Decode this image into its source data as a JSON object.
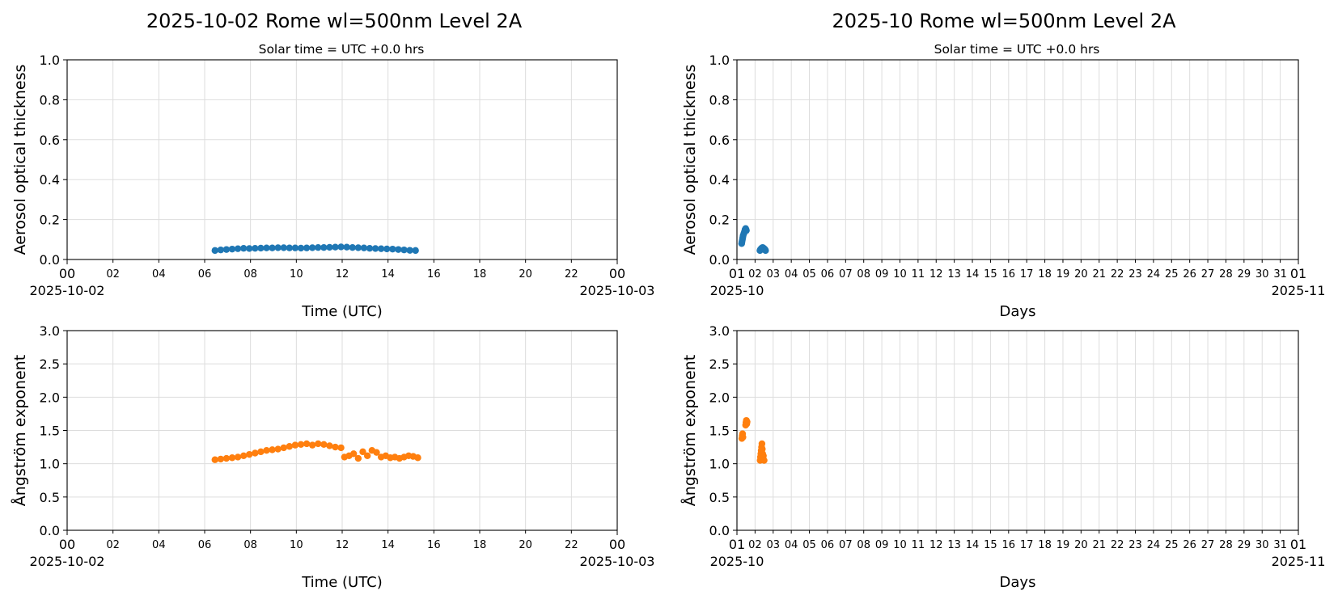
{
  "figure": {
    "left_title": "2025-10-02  Rome  wl=500nm  Level 2A",
    "right_title": "2025-10  Rome  wl=500nm  Level 2A",
    "subtitle": "Solar time = UTC +0.0 hrs"
  },
  "chart_data": [
    {
      "id": "daily-aot",
      "type": "scatter",
      "ylabel": "Aerosol optical thickness",
      "xlabel": "Time (UTC)",
      "ylim": [
        0,
        1.0
      ],
      "yticks": [
        "0.0",
        "0.2",
        "0.4",
        "0.6",
        "0.8",
        "1.0"
      ],
      "xlim": [
        0,
        24
      ],
      "xticks_major": [
        "00",
        "00"
      ],
      "xticks_minor": [
        "02",
        "04",
        "06",
        "08",
        "10",
        "12",
        "14",
        "16",
        "18",
        "20",
        "22"
      ],
      "x_sublabels": [
        "2025-10-02",
        "2025-10-03"
      ],
      "grid": true,
      "color": "#1f77b4",
      "x": [
        6.45,
        6.7,
        6.95,
        7.2,
        7.45,
        7.7,
        7.95,
        8.2,
        8.45,
        8.7,
        8.95,
        9.2,
        9.45,
        9.7,
        9.95,
        10.2,
        10.45,
        10.7,
        10.95,
        11.2,
        11.45,
        11.7,
        11.95,
        12.2,
        12.45,
        12.7,
        12.95,
        13.2,
        13.45,
        13.7,
        13.95,
        14.2,
        14.45,
        14.7,
        14.95,
        15.2
      ],
      "y": [
        0.045,
        0.048,
        0.05,
        0.052,
        0.054,
        0.056,
        0.055,
        0.056,
        0.057,
        0.058,
        0.058,
        0.059,
        0.059,
        0.058,
        0.058,
        0.057,
        0.058,
        0.059,
        0.06,
        0.06,
        0.061,
        0.062,
        0.063,
        0.062,
        0.06,
        0.059,
        0.058,
        0.056,
        0.055,
        0.054,
        0.053,
        0.052,
        0.05,
        0.048,
        0.046,
        0.045
      ]
    },
    {
      "id": "monthly-aot",
      "type": "scatter",
      "ylabel": "Aerosol optical thickness",
      "xlabel": "Days",
      "ylim": [
        0,
        1.0
      ],
      "yticks": [
        "0.0",
        "0.2",
        "0.4",
        "0.6",
        "0.8",
        "1.0"
      ],
      "xlim": [
        1,
        32
      ],
      "xticks_major": [
        "01",
        "01"
      ],
      "xticks_minor": [
        "02",
        "03",
        "04",
        "05",
        "06",
        "07",
        "08",
        "09",
        "10",
        "11",
        "12",
        "13",
        "14",
        "15",
        "16",
        "17",
        "18",
        "19",
        "20",
        "21",
        "22",
        "23",
        "24",
        "25",
        "26",
        "27",
        "28",
        "29",
        "30",
        "31"
      ],
      "x_sublabels": [
        "2025-10",
        "2025-11"
      ],
      "grid": true,
      "color": "#1f77b4",
      "x": [
        1.26,
        1.28,
        1.3,
        1.32,
        1.34,
        1.38,
        1.42,
        1.45,
        1.48,
        1.5,
        1.52,
        2.27,
        2.3,
        2.34,
        2.38,
        2.42,
        2.45,
        2.5,
        2.55,
        2.58
      ],
      "y": [
        0.08,
        0.09,
        0.1,
        0.11,
        0.12,
        0.13,
        0.14,
        0.15,
        0.155,
        0.15,
        0.145,
        0.045,
        0.05,
        0.055,
        0.058,
        0.06,
        0.058,
        0.055,
        0.05,
        0.045
      ]
    },
    {
      "id": "daily-angstrom",
      "type": "scatter",
      "ylabel": "Ångström exponent",
      "xlabel": "Time (UTC)",
      "ylim": [
        0,
        3.0
      ],
      "yticks": [
        "0.0",
        "0.5",
        "1.0",
        "1.5",
        "2.0",
        "2.5",
        "3.0"
      ],
      "xlim": [
        0,
        24
      ],
      "xticks_major": [
        "00",
        "00"
      ],
      "xticks_minor": [
        "02",
        "04",
        "06",
        "08",
        "10",
        "12",
        "14",
        "16",
        "18",
        "20",
        "22"
      ],
      "x_sublabels": [
        "2025-10-02",
        "2025-10-03"
      ],
      "grid": true,
      "color": "#ff7f0e",
      "x": [
        6.45,
        6.7,
        6.95,
        7.2,
        7.45,
        7.7,
        7.95,
        8.2,
        8.45,
        8.7,
        8.95,
        9.2,
        9.45,
        9.7,
        9.95,
        10.2,
        10.45,
        10.7,
        10.95,
        11.2,
        11.45,
        11.7,
        11.95,
        12.1,
        12.3,
        12.5,
        12.7,
        12.9,
        13.1,
        13.3,
        13.5,
        13.7,
        13.9,
        14.1,
        14.3,
        14.5,
        14.7,
        14.9,
        15.1,
        15.3
      ],
      "y": [
        1.06,
        1.07,
        1.08,
        1.09,
        1.1,
        1.12,
        1.14,
        1.16,
        1.18,
        1.2,
        1.21,
        1.22,
        1.24,
        1.26,
        1.28,
        1.29,
        1.3,
        1.28,
        1.3,
        1.29,
        1.27,
        1.25,
        1.24,
        1.1,
        1.12,
        1.15,
        1.08,
        1.18,
        1.12,
        1.2,
        1.17,
        1.1,
        1.12,
        1.09,
        1.1,
        1.08,
        1.1,
        1.12,
        1.11,
        1.09
      ]
    },
    {
      "id": "monthly-angstrom",
      "type": "scatter",
      "ylabel": "Ångström exponent",
      "xlabel": "Days",
      "ylim": [
        0,
        3.0
      ],
      "yticks": [
        "0.0",
        "0.5",
        "1.0",
        "1.5",
        "2.0",
        "2.5",
        "3.0"
      ],
      "xlim": [
        1,
        32
      ],
      "xticks_major": [
        "01",
        "01"
      ],
      "xticks_minor": [
        "02",
        "03",
        "04",
        "05",
        "06",
        "07",
        "08",
        "09",
        "10",
        "11",
        "12",
        "13",
        "14",
        "15",
        "16",
        "17",
        "18",
        "19",
        "20",
        "21",
        "22",
        "23",
        "24",
        "25",
        "26",
        "27",
        "28",
        "29",
        "30",
        "31"
      ],
      "x_sublabels": [
        "2025-10",
        "2025-11"
      ],
      "grid": true,
      "color": "#ff7f0e",
      "x": [
        1.27,
        1.29,
        1.31,
        1.33,
        1.48,
        1.5,
        1.52,
        1.54,
        1.56,
        2.28,
        2.3,
        2.32,
        2.34,
        2.36,
        2.38,
        2.4,
        2.42,
        2.44,
        2.46,
        2.5
      ],
      "y": [
        1.38,
        1.42,
        1.45,
        1.4,
        1.58,
        1.62,
        1.65,
        1.6,
        1.63,
        1.05,
        1.1,
        1.15,
        1.2,
        1.25,
        1.3,
        1.22,
        1.15,
        1.08,
        1.12,
        1.05
      ]
    }
  ]
}
